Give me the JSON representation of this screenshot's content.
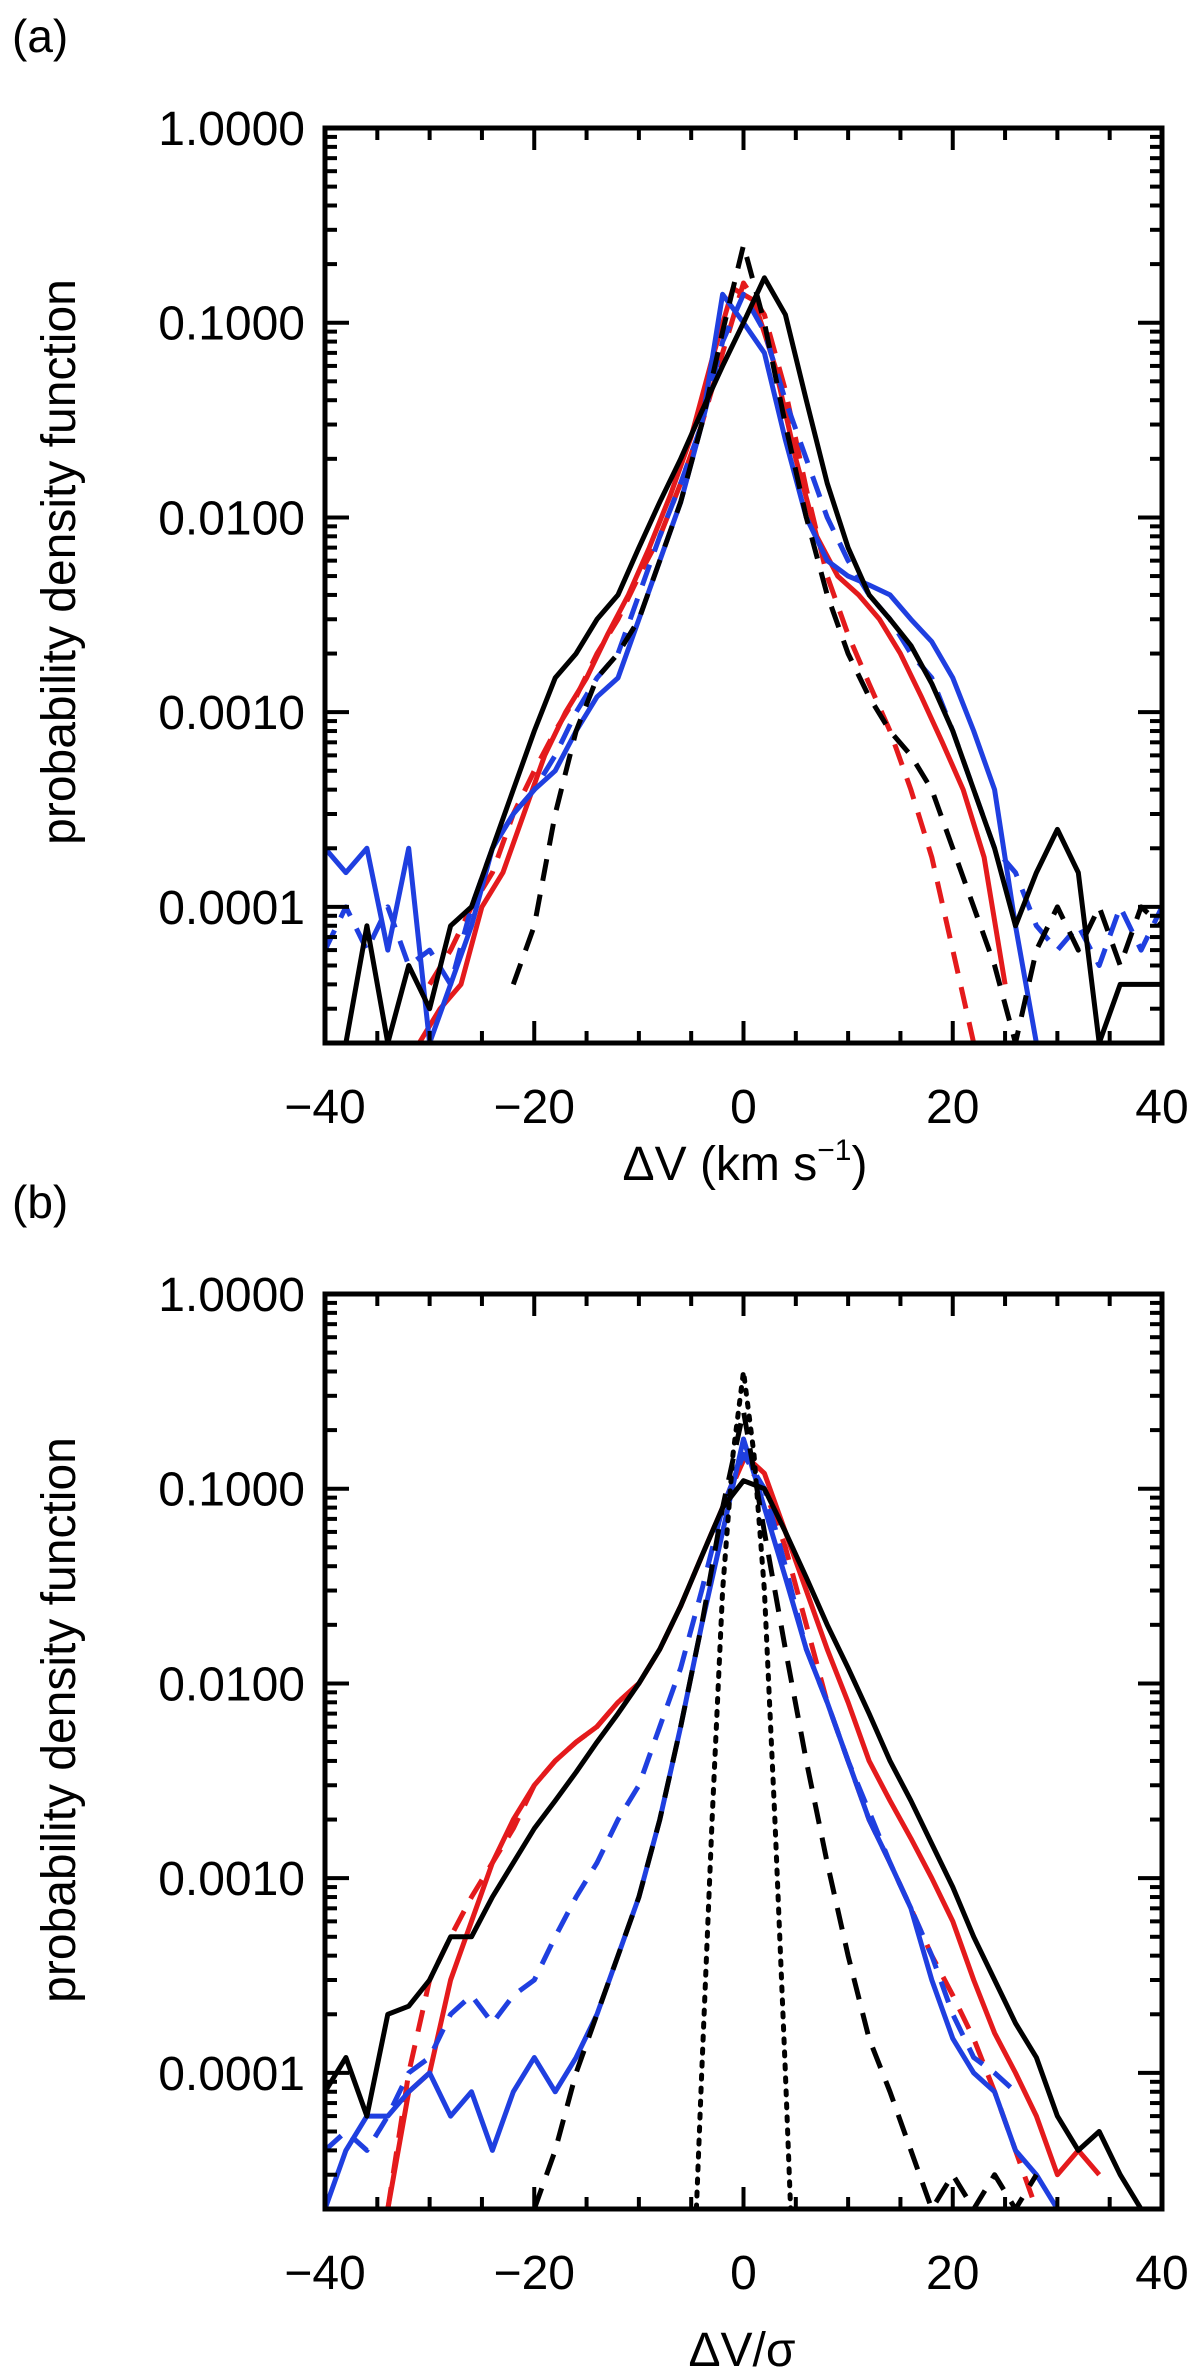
{
  "chart_data": [
    {
      "type": "line",
      "panel_label": "(a)",
      "ylabel": "probability density function",
      "xlabel_main": "ΔV (km s",
      "xlabel_sup": "−1",
      "xlabel_close": ")",
      "xlim": [
        -40,
        40
      ],
      "ylim": [
        2e-05,
        1.0
      ],
      "yscale": "log",
      "x_ticks": [
        -40,
        -20,
        0,
        20,
        40
      ],
      "x_tick_labels": [
        "−40",
        "−20",
        "0",
        "20",
        "40"
      ],
      "y_ticks": [
        1.0,
        0.1,
        0.01,
        0.001,
        0.0001
      ],
      "y_tick_labels": [
        "1.0000",
        "0.1000",
        "0.0100",
        "0.0010",
        "0.0001"
      ],
      "series": [
        {
          "color": "#e41a1c",
          "style": "solid",
          "x": [
            -31,
            -29,
            -27,
            -25,
            -23,
            -21,
            -19,
            -17,
            -15,
            -13,
            -11,
            -9,
            -7,
            -5,
            -3,
            -1,
            1,
            3,
            5,
            7,
            9,
            11,
            13,
            15,
            17,
            19,
            21,
            23,
            25
          ],
          "y": [
            2e-05,
            3e-05,
            4e-05,
            0.0001,
            0.00015,
            0.0003,
            0.0006,
            0.001,
            0.0015,
            0.0025,
            0.004,
            0.007,
            0.013,
            0.026,
            0.065,
            0.15,
            0.13,
            0.06,
            0.02,
            0.008,
            0.005,
            0.004,
            0.003,
            0.002,
            0.0012,
            0.0007,
            0.0004,
            0.00018,
            4e-05
          ]
        },
        {
          "color": "#e41a1c",
          "style": "dashed",
          "x": [
            -30,
            -28,
            -26,
            -24,
            -22,
            -20,
            -18,
            -16,
            -14,
            -12,
            -10,
            -8,
            -6,
            -4,
            -2,
            0,
            2,
            4,
            6,
            8,
            10,
            12,
            14,
            16,
            18,
            20,
            22
          ],
          "y": [
            4e-05,
            6e-05,
            0.0001,
            0.00015,
            0.0003,
            0.0005,
            0.0008,
            0.0012,
            0.002,
            0.003,
            0.005,
            0.008,
            0.015,
            0.03,
            0.07,
            0.16,
            0.11,
            0.045,
            0.014,
            0.005,
            0.0025,
            0.0014,
            0.0008,
            0.0004,
            0.00018,
            6e-05,
            2e-05
          ]
        },
        {
          "color": "#1f3fe0",
          "style": "solid",
          "x": [
            -40,
            -38,
            -36,
            -34,
            -32,
            -30,
            -28,
            -26,
            -24,
            -22,
            -20,
            -18,
            -16,
            -14,
            -12,
            -10,
            -8,
            -6,
            -4,
            -2,
            0,
            2,
            4,
            6,
            8,
            10,
            12,
            14,
            16,
            18,
            20,
            22,
            24,
            26,
            28
          ],
          "y": [
            0.0002,
            0.00015,
            0.0002,
            6e-05,
            0.0002,
            2e-05,
            4e-05,
            8e-05,
            0.0002,
            0.0003,
            0.0004,
            0.0005,
            0.0008,
            0.0012,
            0.0015,
            0.003,
            0.006,
            0.012,
            0.03,
            0.14,
            0.1,
            0.07,
            0.025,
            0.01,
            0.006,
            0.005,
            0.0045,
            0.004,
            0.003,
            0.0023,
            0.0015,
            0.0008,
            0.0004,
            8e-05,
            2e-05
          ]
        },
        {
          "color": "#1f3fe0",
          "style": "dashed",
          "x": [
            -40,
            -38,
            -36,
            -34,
            -32,
            -30,
            -28,
            -26,
            -24,
            -22,
            -20,
            -18,
            -16,
            -14,
            -12,
            -10,
            -8,
            -6,
            -4,
            -2,
            0,
            2,
            4,
            6,
            8,
            10,
            12,
            14,
            16,
            18,
            20,
            22,
            24,
            26,
            28,
            30,
            32,
            34,
            36,
            38,
            40
          ],
          "y": [
            6e-05,
            0.0001,
            6e-05,
            0.0001,
            5e-05,
            6e-05,
            4e-05,
            0.0001,
            0.0002,
            0.0003,
            0.0004,
            0.0006,
            0.001,
            0.0015,
            0.002,
            0.004,
            0.008,
            0.015,
            0.03,
            0.08,
            0.14,
            0.09,
            0.04,
            0.02,
            0.01,
            0.006,
            0.004,
            0.003,
            0.002,
            0.0015,
            0.0008,
            0.0004,
            0.0002,
            0.00015,
            8e-05,
            6e-05,
            8e-05,
            5e-05,
            0.0001,
            6e-05,
            0.0001
          ]
        },
        {
          "color": "#000000",
          "style": "solid",
          "x": [
            -38,
            -36,
            -34,
            -32,
            -30,
            -28,
            -26,
            -24,
            -22,
            -20,
            -18,
            -16,
            -14,
            -12,
            -10,
            -8,
            -6,
            -4,
            -2,
            0,
            2,
            4,
            6,
            8,
            10,
            12,
            14,
            16,
            18,
            20,
            22,
            24,
            26,
            28,
            30,
            32,
            34,
            36,
            38,
            40
          ],
          "y": [
            2e-05,
            8e-05,
            2e-05,
            5e-05,
            3e-05,
            8e-05,
            0.0001,
            0.0002,
            0.0004,
            0.0008,
            0.0015,
            0.002,
            0.003,
            0.004,
            0.007,
            0.012,
            0.02,
            0.035,
            0.06,
            0.1,
            0.17,
            0.11,
            0.04,
            0.015,
            0.007,
            0.004,
            0.003,
            0.0022,
            0.0014,
            0.0008,
            0.0004,
            0.0002,
            8e-05,
            0.00015,
            0.00025,
            0.00015,
            2e-05,
            4e-05,
            4e-05,
            4e-05
          ]
        },
        {
          "color": "#000000",
          "style": "dashed",
          "x": [
            -22,
            -20,
            -18,
            -16,
            -14,
            -12,
            -10,
            -8,
            -6,
            -4,
            -2,
            0,
            2,
            4,
            6,
            8,
            10,
            12,
            14,
            16,
            18,
            20,
            22,
            24,
            26,
            28,
            30,
            32,
            34,
            36,
            38,
            40
          ],
          "y": [
            4e-05,
            8e-05,
            0.0003,
            0.0008,
            0.0015,
            0.002,
            0.003,
            0.006,
            0.012,
            0.03,
            0.09,
            0.25,
            0.1,
            0.03,
            0.01,
            0.004,
            0.002,
            0.0012,
            0.0008,
            0.0006,
            0.0004,
            0.0002,
            0.0001,
            5e-05,
            2e-05,
            6e-05,
            0.0001,
            6e-05,
            0.0001,
            5e-05,
            0.0001,
            8e-05
          ]
        }
      ]
    },
    {
      "type": "line",
      "panel_label": "(b)",
      "ylabel": "probability density function",
      "xlabel_main": "ΔV/σ",
      "xlim": [
        -40,
        40
      ],
      "ylim": [
        2e-05,
        1.0
      ],
      "yscale": "log",
      "x_ticks": [
        -40,
        -20,
        0,
        20,
        40
      ],
      "x_tick_labels": [
        "−40",
        "−20",
        "0",
        "20",
        "40"
      ],
      "y_ticks": [
        1.0,
        0.1,
        0.01,
        0.001,
        0.0001
      ],
      "y_tick_labels": [
        "1.0000",
        "0.1000",
        "0.0100",
        "0.0010",
        "0.0001"
      ],
      "series": [
        {
          "color": "#e41a1c",
          "style": "solid",
          "x": [
            -34,
            -32,
            -30,
            -28,
            -26,
            -24,
            -22,
            -20,
            -18,
            -16,
            -14,
            -12,
            -10,
            -8,
            -6,
            -4,
            -2,
            0,
            2,
            4,
            6,
            8,
            10,
            12,
            14,
            16,
            18,
            20,
            22,
            24,
            26,
            28,
            30,
            32,
            34
          ],
          "y": [
            2e-05,
            8e-05,
            0.0001,
            0.0003,
            0.0006,
            0.0012,
            0.002,
            0.003,
            0.004,
            0.005,
            0.006,
            0.008,
            0.01,
            0.015,
            0.025,
            0.045,
            0.08,
            0.15,
            0.12,
            0.06,
            0.03,
            0.015,
            0.008,
            0.004,
            0.0025,
            0.0016,
            0.001,
            0.0006,
            0.0003,
            0.00016,
            0.0001,
            6e-05,
            3e-05,
            4e-05,
            3e-05
          ]
        },
        {
          "color": "#e41a1c",
          "style": "dashed",
          "x": [
            -34,
            -32,
            -30,
            -28,
            -26,
            -24,
            -22,
            -20,
            -18,
            -16,
            -14,
            -12,
            -10,
            -8,
            -6,
            -4,
            -2,
            0,
            2,
            4,
            6,
            8,
            10,
            12,
            14,
            16,
            18,
            20,
            22,
            24,
            26,
            28
          ],
          "y": [
            2e-05,
            0.0001,
            0.0003,
            0.0005,
            0.0008,
            0.0012,
            0.0018,
            0.003,
            0.004,
            0.005,
            0.006,
            0.008,
            0.01,
            0.015,
            0.025,
            0.045,
            0.08,
            0.14,
            0.1,
            0.05,
            0.02,
            0.008,
            0.004,
            0.002,
            0.0012,
            0.0007,
            0.0004,
            0.00025,
            0.00015,
            8e-05,
            4e-05,
            2e-05
          ]
        },
        {
          "color": "#1f3fe0",
          "style": "solid",
          "x": [
            -40,
            -38,
            -36,
            -34,
            -32,
            -30,
            -28,
            -26,
            -24,
            -22,
            -20,
            -18,
            -16,
            -14,
            -12,
            -10,
            -8,
            -6,
            -4,
            -2,
            0,
            2,
            4,
            6,
            8,
            10,
            12,
            14,
            16,
            18,
            20,
            22,
            24,
            26,
            28,
            30
          ],
          "y": [
            2e-05,
            4e-05,
            6e-05,
            6e-05,
            8e-05,
            0.0001,
            6e-05,
            8e-05,
            4e-05,
            8e-05,
            0.00012,
            8e-05,
            0.00012,
            0.0002,
            0.0004,
            0.0008,
            0.002,
            0.006,
            0.02,
            0.06,
            0.18,
            0.08,
            0.035,
            0.015,
            0.008,
            0.004,
            0.002,
            0.0012,
            0.0007,
            0.0003,
            0.00015,
            0.0001,
            8e-05,
            4e-05,
            3e-05,
            2e-05
          ]
        },
        {
          "color": "#1f3fe0",
          "style": "dashed",
          "x": [
            -40,
            -38,
            -36,
            -34,
            -32,
            -30,
            -28,
            -26,
            -24,
            -22,
            -20,
            -18,
            -16,
            -14,
            -12,
            -10,
            -8,
            -6,
            -4,
            -2,
            0,
            2,
            4,
            6,
            8,
            10,
            12,
            14,
            16,
            18,
            20,
            22,
            24,
            26
          ],
          "y": [
            4e-05,
            5e-05,
            4e-05,
            6e-05,
            0.0001,
            0.00012,
            0.0002,
            0.00025,
            0.00018,
            0.00025,
            0.0003,
            0.0005,
            0.0008,
            0.0012,
            0.002,
            0.003,
            0.006,
            0.012,
            0.03,
            0.08,
            0.15,
            0.1,
            0.04,
            0.015,
            0.008,
            0.004,
            0.0022,
            0.0012,
            0.0007,
            0.0004,
            0.0002,
            0.00012,
            0.0001,
            8e-05
          ]
        },
        {
          "color": "#000000",
          "style": "solid",
          "x": [
            -40,
            -38,
            -36,
            -34,
            -32,
            -30,
            -28,
            -26,
            -24,
            -22,
            -20,
            -18,
            -16,
            -14,
            -12,
            -10,
            -8,
            -6,
            -4,
            -2,
            0,
            2,
            4,
            6,
            8,
            10,
            12,
            14,
            16,
            18,
            20,
            22,
            24,
            26,
            28,
            30,
            32,
            34,
            36,
            38
          ],
          "y": [
            8e-05,
            0.00012,
            6e-05,
            0.0002,
            0.00022,
            0.0003,
            0.0005,
            0.0005,
            0.0008,
            0.0012,
            0.0018,
            0.0025,
            0.0035,
            0.005,
            0.007,
            0.01,
            0.015,
            0.025,
            0.045,
            0.08,
            0.11,
            0.1,
            0.06,
            0.035,
            0.02,
            0.012,
            0.007,
            0.004,
            0.0025,
            0.0015,
            0.0009,
            0.0005,
            0.0003,
            0.00018,
            0.00012,
            6e-05,
            4e-05,
            5e-05,
            3e-05,
            2e-05
          ]
        },
        {
          "color": "#000000",
          "style": "dashed",
          "x": [
            -20,
            -18,
            -16,
            -14,
            -12,
            -10,
            -8,
            -6,
            -4,
            -2,
            0,
            2,
            4,
            6,
            8,
            10,
            12,
            14,
            16,
            18,
            20,
            22,
            24,
            26,
            28
          ],
          "y": [
            2e-05,
            4e-05,
            0.0001,
            0.0002,
            0.0004,
            0.0008,
            0.002,
            0.006,
            0.02,
            0.08,
            0.25,
            0.06,
            0.015,
            0.004,
            0.0012,
            0.0004,
            0.00015,
            8e-05,
            4e-05,
            2e-05,
            3e-05,
            2e-05,
            3e-05,
            2e-05,
            3e-05
          ]
        },
        {
          "color": "#000000",
          "style": "dotted",
          "x": [
            -4.5,
            -4,
            -3,
            -2,
            -1,
            0,
            1,
            2,
            3,
            4,
            4.5
          ],
          "y": [
            2e-05,
            0.0001,
            0.002,
            0.03,
            0.15,
            0.4,
            0.15,
            0.03,
            0.002,
            0.0001,
            2e-05
          ]
        }
      ]
    }
  ]
}
